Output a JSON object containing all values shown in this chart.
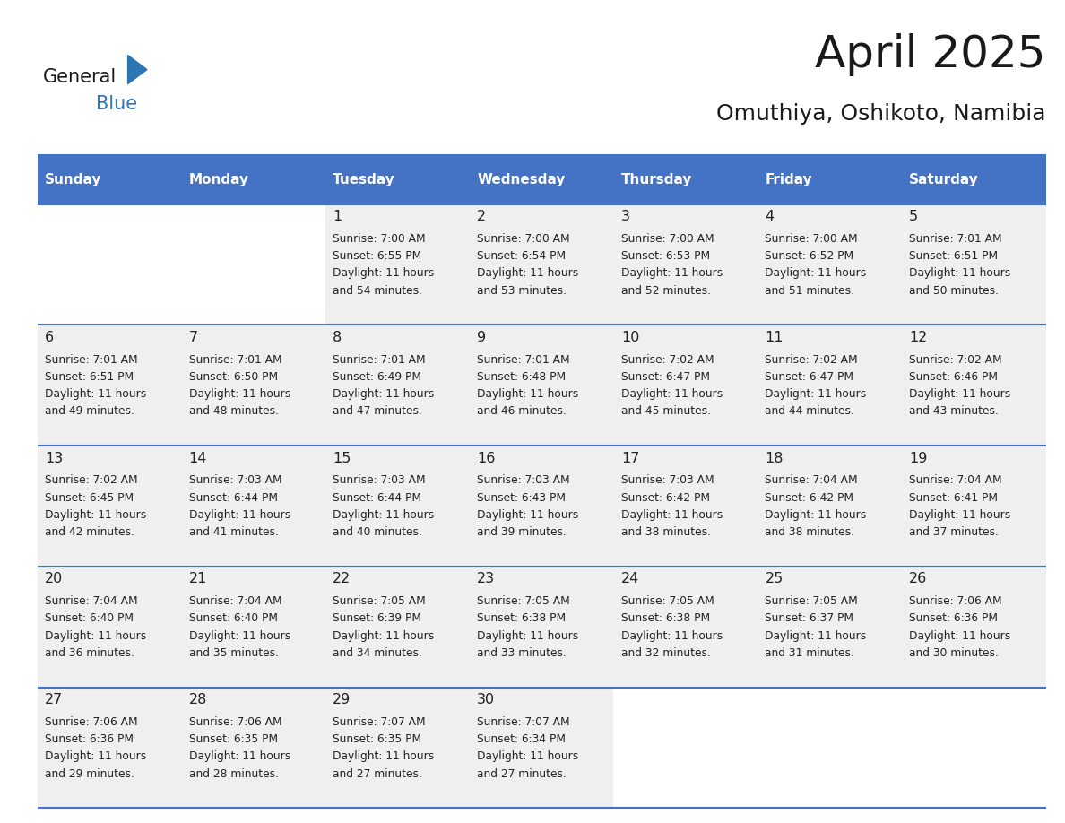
{
  "title": "April 2025",
  "subtitle": "Omuthiya, Oshikoto, Namibia",
  "days_of_week": [
    "Sunday",
    "Monday",
    "Tuesday",
    "Wednesday",
    "Thursday",
    "Friday",
    "Saturday"
  ],
  "header_bg": "#4472C4",
  "header_text_color": "#FFFFFF",
  "row_bg_light": "#EFEFEF",
  "row_bg_white": "#FFFFFF",
  "cell_text_color": "#222222",
  "border_color": "#4472C4",
  "calendar": [
    [
      null,
      null,
      {
        "day": 1,
        "sunrise": "7:00 AM",
        "sunset": "6:55 PM",
        "daylight": "11 hours and 54 minutes."
      },
      {
        "day": 2,
        "sunrise": "7:00 AM",
        "sunset": "6:54 PM",
        "daylight": "11 hours and 53 minutes."
      },
      {
        "day": 3,
        "sunrise": "7:00 AM",
        "sunset": "6:53 PM",
        "daylight": "11 hours and 52 minutes."
      },
      {
        "day": 4,
        "sunrise": "7:00 AM",
        "sunset": "6:52 PM",
        "daylight": "11 hours and 51 minutes."
      },
      {
        "day": 5,
        "sunrise": "7:01 AM",
        "sunset": "6:51 PM",
        "daylight": "11 hours and 50 minutes."
      }
    ],
    [
      {
        "day": 6,
        "sunrise": "7:01 AM",
        "sunset": "6:51 PM",
        "daylight": "11 hours and 49 minutes."
      },
      {
        "day": 7,
        "sunrise": "7:01 AM",
        "sunset": "6:50 PM",
        "daylight": "11 hours and 48 minutes."
      },
      {
        "day": 8,
        "sunrise": "7:01 AM",
        "sunset": "6:49 PM",
        "daylight": "11 hours and 47 minutes."
      },
      {
        "day": 9,
        "sunrise": "7:01 AM",
        "sunset": "6:48 PM",
        "daylight": "11 hours and 46 minutes."
      },
      {
        "day": 10,
        "sunrise": "7:02 AM",
        "sunset": "6:47 PM",
        "daylight": "11 hours and 45 minutes."
      },
      {
        "day": 11,
        "sunrise": "7:02 AM",
        "sunset": "6:47 PM",
        "daylight": "11 hours and 44 minutes."
      },
      {
        "day": 12,
        "sunrise": "7:02 AM",
        "sunset": "6:46 PM",
        "daylight": "11 hours and 43 minutes."
      }
    ],
    [
      {
        "day": 13,
        "sunrise": "7:02 AM",
        "sunset": "6:45 PM",
        "daylight": "11 hours and 42 minutes."
      },
      {
        "day": 14,
        "sunrise": "7:03 AM",
        "sunset": "6:44 PM",
        "daylight": "11 hours and 41 minutes."
      },
      {
        "day": 15,
        "sunrise": "7:03 AM",
        "sunset": "6:44 PM",
        "daylight": "11 hours and 40 minutes."
      },
      {
        "day": 16,
        "sunrise": "7:03 AM",
        "sunset": "6:43 PM",
        "daylight": "11 hours and 39 minutes."
      },
      {
        "day": 17,
        "sunrise": "7:03 AM",
        "sunset": "6:42 PM",
        "daylight": "11 hours and 38 minutes."
      },
      {
        "day": 18,
        "sunrise": "7:04 AM",
        "sunset": "6:42 PM",
        "daylight": "11 hours and 38 minutes."
      },
      {
        "day": 19,
        "sunrise": "7:04 AM",
        "sunset": "6:41 PM",
        "daylight": "11 hours and 37 minutes."
      }
    ],
    [
      {
        "day": 20,
        "sunrise": "7:04 AM",
        "sunset": "6:40 PM",
        "daylight": "11 hours and 36 minutes."
      },
      {
        "day": 21,
        "sunrise": "7:04 AM",
        "sunset": "6:40 PM",
        "daylight": "11 hours and 35 minutes."
      },
      {
        "day": 22,
        "sunrise": "7:05 AM",
        "sunset": "6:39 PM",
        "daylight": "11 hours and 34 minutes."
      },
      {
        "day": 23,
        "sunrise": "7:05 AM",
        "sunset": "6:38 PM",
        "daylight": "11 hours and 33 minutes."
      },
      {
        "day": 24,
        "sunrise": "7:05 AM",
        "sunset": "6:38 PM",
        "daylight": "11 hours and 32 minutes."
      },
      {
        "day": 25,
        "sunrise": "7:05 AM",
        "sunset": "6:37 PM",
        "daylight": "11 hours and 31 minutes."
      },
      {
        "day": 26,
        "sunrise": "7:06 AM",
        "sunset": "6:36 PM",
        "daylight": "11 hours and 30 minutes."
      }
    ],
    [
      {
        "day": 27,
        "sunrise": "7:06 AM",
        "sunset": "6:36 PM",
        "daylight": "11 hours and 29 minutes."
      },
      {
        "day": 28,
        "sunrise": "7:06 AM",
        "sunset": "6:35 PM",
        "daylight": "11 hours and 28 minutes."
      },
      {
        "day": 29,
        "sunrise": "7:07 AM",
        "sunset": "6:35 PM",
        "daylight": "11 hours and 27 minutes."
      },
      {
        "day": 30,
        "sunrise": "7:07 AM",
        "sunset": "6:34 PM",
        "daylight": "11 hours and 27 minutes."
      },
      null,
      null,
      null
    ]
  ],
  "logo_triangle_color": "#2E75B6",
  "figsize": [
    11.88,
    9.18
  ],
  "dpi": 100
}
